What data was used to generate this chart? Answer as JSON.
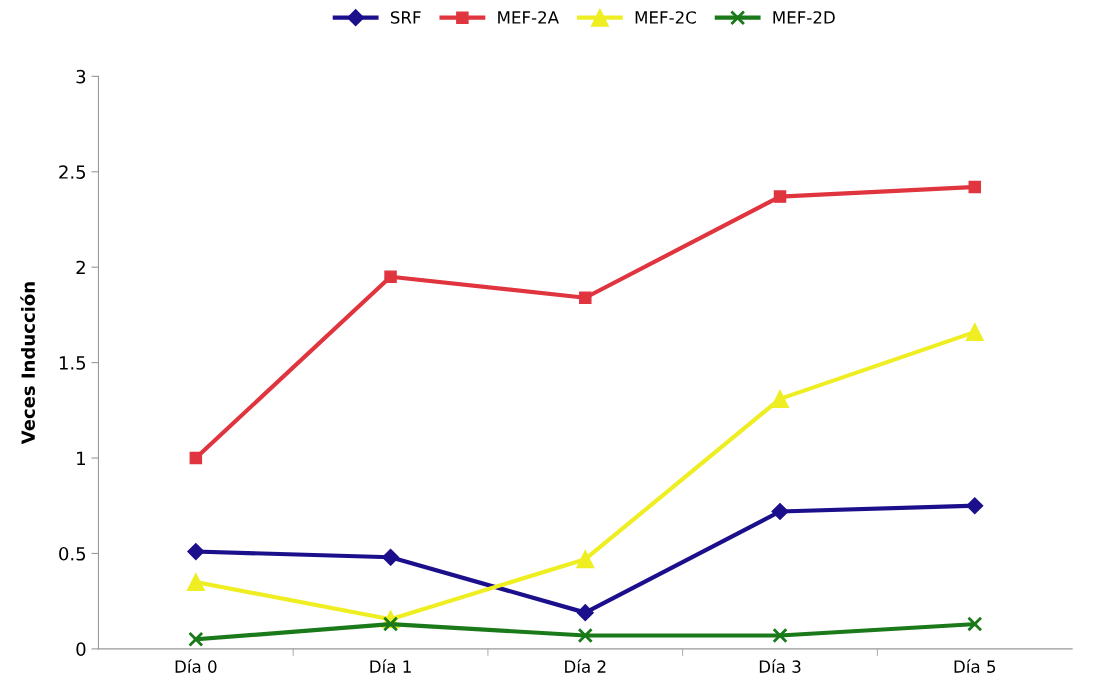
{
  "chart_data": {
    "type": "line",
    "ylabel": "Veces Inducción",
    "categories": [
      "Día 0",
      "Día 1",
      "Día 2",
      "Día 3",
      "Día 5"
    ],
    "series": [
      {
        "name": "SRF",
        "color": "#1c0f8c",
        "marker": "diamond",
        "values": [
          0.51,
          0.48,
          0.19,
          0.72,
          0.75
        ]
      },
      {
        "name": "MEF-2A",
        "color": "#e0353f",
        "marker": "square",
        "values": [
          1.0,
          1.95,
          1.84,
          2.37,
          2.42
        ]
      },
      {
        "name": "MEF-2C",
        "color": "#eeee22",
        "marker": "triangle",
        "values": [
          0.35,
          0.155,
          0.47,
          1.31,
          1.66
        ]
      },
      {
        "name": "MEF-2D",
        "color": "#1a7a1a",
        "marker": "cross",
        "values": [
          0.05,
          0.13,
          0.07,
          0.07,
          0.13
        ]
      }
    ],
    "ylim": [
      0,
      3
    ],
    "yticks": [
      0,
      0.5,
      1,
      1.5,
      2,
      2.5,
      3
    ],
    "grid": false,
    "legend": "top",
    "line_style": "solid"
  }
}
